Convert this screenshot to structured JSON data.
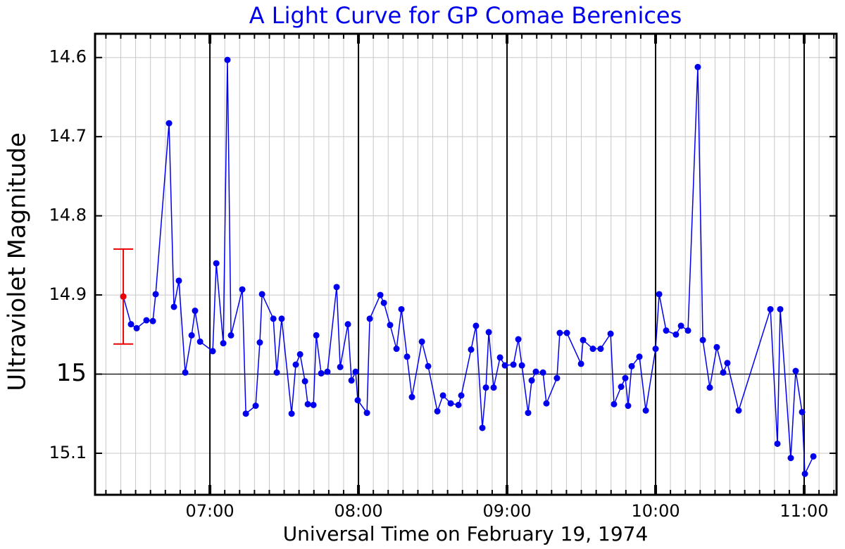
{
  "chart_data": {
    "type": "line",
    "title": "A Light Curve for GP Comae Berenices",
    "xlabel": "Universal Time on February 19, 1974",
    "ylabel": "Ultraviolet Magnitude",
    "xlim": [
      6.227,
      11.218
    ],
    "ylim": [
      15.1525,
      14.57
    ],
    "xticks": [
      {
        "value": 7,
        "label": "07:00"
      },
      {
        "value": 8,
        "label": "08:00"
      },
      {
        "value": 9,
        "label": "09:00"
      },
      {
        "value": 10,
        "label": "10:00"
      },
      {
        "value": 11,
        "label": "11:00"
      }
    ],
    "xminorticks": [
      6.3,
      6.4,
      6.5,
      6.6,
      6.7,
      6.8,
      6.9,
      7.1,
      7.2,
      7.3,
      7.4,
      7.5,
      7.6,
      7.7,
      7.8,
      7.9,
      8.1,
      8.2,
      8.3,
      8.4,
      8.5,
      8.6,
      8.7,
      8.8,
      8.9,
      9.1,
      9.2,
      9.3,
      9.4,
      9.5,
      9.6,
      9.7,
      9.8,
      9.9,
      10.1,
      10.2,
      10.3,
      10.4,
      10.5,
      10.6,
      10.7,
      10.8,
      10.9,
      11.1,
      11.2
    ],
    "yticks": [
      14.6,
      14.7,
      14.8,
      14.9,
      15,
      15.1
    ],
    "yref": 15,
    "grid": true,
    "series": [
      {
        "color": "#0000ee",
        "x": [
          6.417,
          6.469,
          6.507,
          6.573,
          6.616,
          6.635,
          6.725,
          6.758,
          6.791,
          6.834,
          6.877,
          6.9,
          6.934,
          7.019,
          7.043,
          7.09,
          7.118,
          7.142,
          7.218,
          7.242,
          7.308,
          7.336,
          7.351,
          7.427,
          7.45,
          7.483,
          7.55,
          7.578,
          7.607,
          7.64,
          7.659,
          7.697,
          7.716,
          7.749,
          7.791,
          7.853,
          7.877,
          7.929,
          7.953,
          7.981,
          7.995,
          8.057,
          8.076,
          8.147,
          8.171,
          8.213,
          8.256,
          8.289,
          8.327,
          8.36,
          8.427,
          8.469,
          8.531,
          8.569,
          8.621,
          8.673,
          8.692,
          8.758,
          8.791,
          8.834,
          8.858,
          8.877,
          8.91,
          8.953,
          8.986,
          9.043,
          9.076,
          9.1,
          9.142,
          9.166,
          9.194,
          9.242,
          9.265,
          9.336,
          9.355,
          9.403,
          9.498,
          9.512,
          9.578,
          9.63,
          9.697,
          9.72,
          9.768,
          9.796,
          9.815,
          9.839,
          9.891,
          9.934,
          10.0,
          10.024,
          10.071,
          10.137,
          10.171,
          10.218,
          10.284,
          10.318,
          10.365,
          10.412,
          10.455,
          10.483,
          10.559,
          10.773,
          10.82,
          10.839,
          10.91,
          10.943,
          10.986,
          11.005,
          11.062
        ],
        "values": [
          14.902,
          14.937,
          14.942,
          14.932,
          14.933,
          14.899,
          14.683,
          14.915,
          14.882,
          14.998,
          14.951,
          14.92,
          14.959,
          14.971,
          14.86,
          14.961,
          14.603,
          14.951,
          14.893,
          15.05,
          15.04,
          14.96,
          14.899,
          14.93,
          14.998,
          14.93,
          15.05,
          14.988,
          14.975,
          15.009,
          15.038,
          15.039,
          14.951,
          14.999,
          14.997,
          14.89,
          14.991,
          14.937,
          15.008,
          14.997,
          15.033,
          15.049,
          14.93,
          14.9,
          14.91,
          14.938,
          14.968,
          14.918,
          14.978,
          15.029,
          14.959,
          14.99,
          15.047,
          15.027,
          15.037,
          15.039,
          15.027,
          14.969,
          14.939,
          15.068,
          15.017,
          14.947,
          15.017,
          14.979,
          14.989,
          14.988,
          14.956,
          14.989,
          15.049,
          15.008,
          14.997,
          14.998,
          15.037,
          15.005,
          14.948,
          14.948,
          14.987,
          14.957,
          14.968,
          14.968,
          14.949,
          15.038,
          15.016,
          15.005,
          15.04,
          14.99,
          14.978,
          15.046,
          14.968,
          14.899,
          14.945,
          14.95,
          14.939,
          14.945,
          14.612,
          14.957,
          15.017,
          14.966,
          14.998,
          14.986,
          15.046,
          14.918,
          15.088,
          14.918,
          15.106,
          14.996,
          15.048,
          15.126,
          15.104
        ]
      },
      {
        "color": "#ee0000",
        "x": [
          6.417
        ],
        "values": [
          14.902
        ],
        "errors": [
          0.06
        ]
      }
    ]
  }
}
